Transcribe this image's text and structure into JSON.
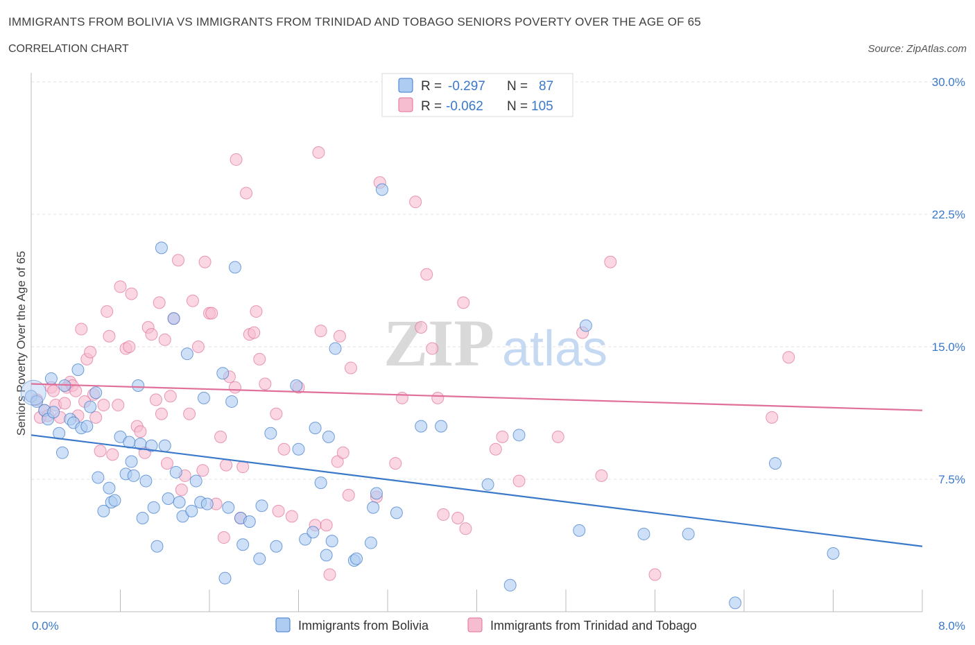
{
  "title": "IMMIGRANTS FROM BOLIVIA VS IMMIGRANTS FROM TRINIDAD AND TOBAGO SENIORS POVERTY OVER THE AGE OF 65",
  "subtitle": "CORRELATION CHART",
  "source": "Source: ZipAtlas.com",
  "watermark": {
    "zip": "ZIP",
    "atlas": "atlas"
  },
  "colors": {
    "blue": "#3a78c9",
    "pink": "#e06f99",
    "blue_fill": "#aecbf2",
    "pink_fill": "#f6bdd0"
  },
  "chart_data": {
    "type": "scatter",
    "title": "IMMIGRANTS FROM BOLIVIA VS IMMIGRANTS FROM TRINIDAD AND TOBAGO SENIORS POVERTY OVER THE AGE OF 65",
    "xlabel": "",
    "ylabel": "Seniors Poverty Over the Age of 65",
    "xlim": [
      0,
      8
    ],
    "ylim": [
      0,
      30
    ],
    "x_tick_labels": [
      "0.0%",
      "8.0%"
    ],
    "y_ticks": [
      7.5,
      15.0,
      22.5,
      30.0
    ],
    "y_tick_labels": [
      "7.5%",
      "15.0%",
      "22.5%",
      "30.0%"
    ],
    "legend": [
      {
        "r_label": "R =",
        "r": "-0.297",
        "n_label": "N =",
        "n": "87"
      },
      {
        "r_label": "R =",
        "r": "-0.062",
        "n_label": "N =",
        "n": "105"
      }
    ],
    "series": [
      {
        "name": "Immigrants from Bolivia",
        "trend": [
          [
            0,
            10.0
          ],
          [
            8,
            3.7
          ]
        ],
        "points": [
          [
            0.0,
            12.2
          ],
          [
            0.12,
            11.4
          ],
          [
            0.15,
            10.9
          ],
          [
            0.18,
            13.2
          ],
          [
            0.2,
            11.3
          ],
          [
            0.25,
            10.1
          ],
          [
            0.28,
            9.0
          ],
          [
            0.3,
            12.8
          ],
          [
            0.35,
            10.9
          ],
          [
            0.38,
            10.7
          ],
          [
            0.42,
            13.7
          ],
          [
            0.45,
            10.4
          ],
          [
            0.5,
            10.5
          ],
          [
            0.53,
            11.6
          ],
          [
            0.58,
            12.4
          ],
          [
            0.6,
            7.6
          ],
          [
            0.65,
            5.7
          ],
          [
            0.7,
            7.0
          ],
          [
            0.72,
            6.2
          ],
          [
            0.75,
            6.3
          ],
          [
            0.8,
            9.9
          ],
          [
            0.85,
            7.8
          ],
          [
            0.88,
            9.6
          ],
          [
            0.9,
            8.5
          ],
          [
            0.92,
            7.7
          ],
          [
            0.96,
            12.8
          ],
          [
            0.98,
            9.5
          ],
          [
            1.0,
            5.3
          ],
          [
            1.03,
            7.4
          ],
          [
            1.08,
            9.4
          ],
          [
            1.1,
            5.9
          ],
          [
            1.13,
            3.7
          ],
          [
            1.17,
            20.6
          ],
          [
            1.2,
            9.4
          ],
          [
            1.23,
            6.4
          ],
          [
            1.28,
            16.6
          ],
          [
            1.3,
            7.9
          ],
          [
            1.33,
            6.2
          ],
          [
            1.36,
            5.4
          ],
          [
            1.4,
            14.6
          ],
          [
            1.44,
            5.7
          ],
          [
            1.48,
            7.4
          ],
          [
            1.52,
            6.2
          ],
          [
            1.55,
            12.1
          ],
          [
            1.58,
            6.1
          ],
          [
            1.72,
            13.5
          ],
          [
            1.74,
            1.9
          ],
          [
            1.77,
            5.9
          ],
          [
            1.8,
            11.9
          ],
          [
            1.83,
            19.5
          ],
          [
            1.88,
            5.3
          ],
          [
            1.9,
            3.8
          ],
          [
            1.96,
            5.1
          ],
          [
            2.05,
            3.0
          ],
          [
            2.07,
            6.0
          ],
          [
            2.15,
            10.1
          ],
          [
            2.2,
            3.7
          ],
          [
            2.38,
            12.8
          ],
          [
            2.4,
            9.2
          ],
          [
            2.46,
            4.1
          ],
          [
            2.53,
            4.5
          ],
          [
            2.55,
            10.4
          ],
          [
            2.6,
            7.3
          ],
          [
            2.65,
            3.2
          ],
          [
            2.67,
            9.9
          ],
          [
            2.7,
            4.0
          ],
          [
            2.73,
            14.9
          ],
          [
            2.9,
            2.9
          ],
          [
            2.92,
            3.0
          ],
          [
            3.05,
            3.9
          ],
          [
            3.07,
            5.9
          ],
          [
            3.1,
            6.7
          ],
          [
            3.15,
            23.9
          ],
          [
            3.28,
            5.6
          ],
          [
            3.5,
            10.5
          ],
          [
            3.68,
            10.5
          ],
          [
            4.1,
            7.2
          ],
          [
            4.3,
            1.5
          ],
          [
            4.38,
            10.0
          ],
          [
            4.92,
            4.6
          ],
          [
            4.98,
            16.2
          ],
          [
            5.5,
            4.4
          ],
          [
            5.9,
            4.4
          ],
          [
            6.32,
            0.5
          ],
          [
            6.68,
            8.4
          ],
          [
            7.2,
            3.3
          ],
          [
            0.05,
            11.9
          ]
        ]
      },
      {
        "name": "Immigrants from Trinidad and Tobago",
        "trend": [
          [
            0,
            12.9
          ],
          [
            8,
            11.4
          ]
        ],
        "points": [
          [
            0.05,
            12.0
          ],
          [
            0.08,
            11.0
          ],
          [
            0.12,
            11.4
          ],
          [
            0.15,
            11.1
          ],
          [
            0.18,
            12.7
          ],
          [
            0.2,
            12.5
          ],
          [
            0.22,
            11.7
          ],
          [
            0.26,
            11.0
          ],
          [
            0.3,
            11.8
          ],
          [
            0.32,
            12.7
          ],
          [
            0.35,
            13.0
          ],
          [
            0.37,
            12.8
          ],
          [
            0.4,
            12.5
          ],
          [
            0.42,
            11.1
          ],
          [
            0.45,
            16.0
          ],
          [
            0.48,
            11.9
          ],
          [
            0.5,
            14.3
          ],
          [
            0.53,
            14.7
          ],
          [
            0.56,
            12.3
          ],
          [
            0.58,
            11.0
          ],
          [
            0.62,
            9.1
          ],
          [
            0.65,
            11.7
          ],
          [
            0.68,
            17.0
          ],
          [
            0.7,
            15.6
          ],
          [
            0.73,
            8.9
          ],
          [
            0.78,
            11.7
          ],
          [
            0.8,
            18.4
          ],
          [
            0.85,
            14.9
          ],
          [
            0.88,
            15.0
          ],
          [
            0.9,
            18.0
          ],
          [
            0.95,
            10.5
          ],
          [
            0.98,
            10.2
          ],
          [
            1.02,
            9.0
          ],
          [
            1.05,
            16.1
          ],
          [
            1.08,
            15.7
          ],
          [
            1.12,
            12.0
          ],
          [
            1.15,
            17.5
          ],
          [
            1.17,
            11.2
          ],
          [
            1.2,
            15.4
          ],
          [
            1.22,
            8.4
          ],
          [
            1.25,
            12.2
          ],
          [
            1.28,
            16.6
          ],
          [
            1.32,
            19.9
          ],
          [
            1.35,
            6.9
          ],
          [
            1.38,
            7.7
          ],
          [
            1.42,
            11.2
          ],
          [
            1.45,
            17.6
          ],
          [
            1.5,
            15.0
          ],
          [
            1.54,
            8.0
          ],
          [
            1.56,
            19.8
          ],
          [
            1.6,
            16.9
          ],
          [
            1.62,
            16.9
          ],
          [
            1.66,
            6.1
          ],
          [
            1.7,
            9.9
          ],
          [
            1.73,
            4.2
          ],
          [
            1.75,
            8.3
          ],
          [
            1.78,
            13.3
          ],
          [
            1.83,
            12.7
          ],
          [
            1.84,
            25.6
          ],
          [
            1.88,
            5.3
          ],
          [
            1.9,
            8.2
          ],
          [
            1.93,
            23.7
          ],
          [
            1.96,
            15.7
          ],
          [
            2.0,
            15.8
          ],
          [
            2.02,
            17.0
          ],
          [
            2.05,
            14.3
          ],
          [
            2.1,
            12.9
          ],
          [
            2.2,
            11.2
          ],
          [
            2.22,
            5.7
          ],
          [
            2.27,
            9.2
          ],
          [
            2.34,
            5.4
          ],
          [
            2.4,
            12.7
          ],
          [
            2.55,
            4.9
          ],
          [
            2.6,
            15.9
          ],
          [
            2.65,
            4.9
          ],
          [
            2.68,
            2.1
          ],
          [
            2.75,
            8.5
          ],
          [
            2.77,
            15.6
          ],
          [
            2.8,
            9.0
          ],
          [
            2.85,
            6.6
          ],
          [
            2.87,
            13.8
          ],
          [
            2.58,
            26.0
          ],
          [
            3.1,
            6.5
          ],
          [
            3.13,
            24.3
          ],
          [
            3.27,
            8.4
          ],
          [
            3.33,
            12.1
          ],
          [
            3.45,
            23.2
          ],
          [
            3.5,
            16.1
          ],
          [
            3.55,
            19.1
          ],
          [
            3.6,
            14.9
          ],
          [
            3.65,
            12.1
          ],
          [
            3.7,
            5.5
          ],
          [
            3.83,
            5.3
          ],
          [
            3.88,
            17.5
          ],
          [
            3.9,
            4.7
          ],
          [
            4.17,
            9.2
          ],
          [
            4.23,
            9.9
          ],
          [
            4.38,
            7.4
          ],
          [
            4.73,
            9.9
          ],
          [
            4.95,
            15.8
          ],
          [
            5.12,
            7.7
          ],
          [
            5.2,
            19.8
          ],
          [
            5.6,
            2.1
          ],
          [
            6.65,
            11.0
          ],
          [
            6.8,
            14.4
          ]
        ]
      }
    ]
  }
}
